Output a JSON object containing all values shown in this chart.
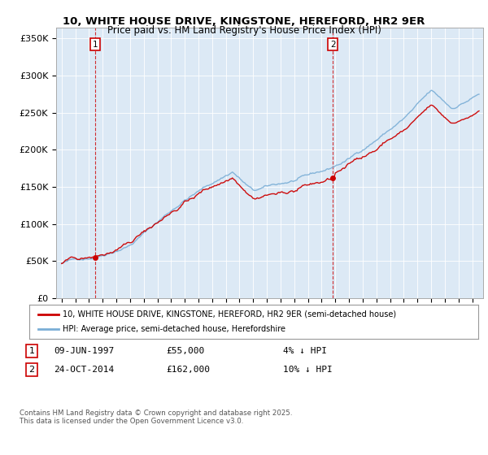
{
  "title": "10, WHITE HOUSE DRIVE, KINGSTONE, HEREFORD, HR2 9ER",
  "subtitle": "Price paid vs. HM Land Registry's House Price Index (HPI)",
  "ylabel_ticks": [
    "£0",
    "£50K",
    "£100K",
    "£150K",
    "£200K",
    "£250K",
    "£300K",
    "£350K"
  ],
  "ytick_values": [
    0,
    50000,
    100000,
    150000,
    200000,
    250000,
    300000,
    350000
  ],
  "ylim": [
    0,
    365000
  ],
  "xlim_start": 1994.6,
  "xlim_end": 2025.8,
  "sale1_year": 1997.44,
  "sale1_price": 55000,
  "sale2_year": 2014.81,
  "sale2_price": 162000,
  "sale1_date": "09-JUN-1997",
  "sale1_price_str": "£55,000",
  "sale1_pct": "4% ↓ HPI",
  "sale2_date": "24-OCT-2014",
  "sale2_price_str": "£162,000",
  "sale2_pct": "10% ↓ HPI",
  "line_color_price": "#cc0000",
  "line_color_hpi": "#7aaed6",
  "marker_color": "#cc0000",
  "dashed_color": "#cc0000",
  "plot_bg_color": "#dce9f5",
  "legend_label_price": "10, WHITE HOUSE DRIVE, KINGSTONE, HEREFORD, HR2 9ER (semi-detached house)",
  "legend_label_hpi": "HPI: Average price, semi-detached house, Herefordshire",
  "footnote": "Contains HM Land Registry data © Crown copyright and database right 2025.\nThis data is licensed under the Open Government Licence v3.0.",
  "background_color": "#ffffff",
  "grid_color": "#ffffff"
}
